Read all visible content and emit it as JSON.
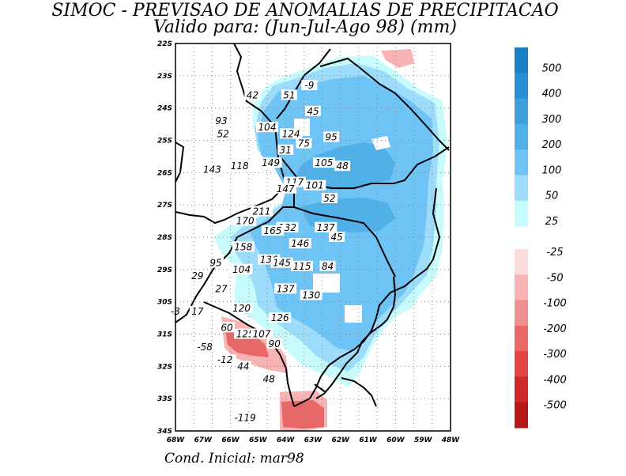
{
  "title_line1": "SIMOC - PREVISAO DE ANOMALIAS DE PRECIPITACAO",
  "title_line2": "Valido para: (Jun-Jul-Ago 98) (mm)",
  "footer": "Cond. Inicial: mar98",
  "map": {
    "lon_ticks": [
      "68W",
      "67W",
      "66W",
      "65W",
      "64W",
      "63W",
      "62W",
      "61W",
      "60W",
      "59W",
      "48W"
    ],
    "lat_ticks": [
      "22S",
      "23S",
      "24S",
      "25S",
      "26S",
      "27S",
      "28S",
      "29S",
      "30S",
      "31S",
      "32S",
      "33S",
      "34S"
    ],
    "labels": [
      {
        "v": "42",
        "lon": -63.8,
        "lat": -23.6
      },
      {
        "v": "51",
        "lon": -61.8,
        "lat": -23.6
      },
      {
        "v": "-9",
        "lon": -60.7,
        "lat": -23.3
      },
      {
        "v": "45",
        "lon": -60.5,
        "lat": -24.1
      },
      {
        "v": "93",
        "lon": -65.5,
        "lat": -24.4
      },
      {
        "v": "52",
        "lon": -65.4,
        "lat": -24.8
      },
      {
        "v": "104",
        "lon": -63.0,
        "lat": -24.6
      },
      {
        "v": "124",
        "lon": -61.7,
        "lat": -24.8
      },
      {
        "v": "75",
        "lon": -61.0,
        "lat": -25.1
      },
      {
        "v": "95",
        "lon": -59.5,
        "lat": -24.9
      },
      {
        "v": "31",
        "lon": -62.0,
        "lat": -25.3
      },
      {
        "v": "149",
        "lon": -62.8,
        "lat": -25.7
      },
      {
        "v": "105",
        "lon": -59.9,
        "lat": -25.7
      },
      {
        "v": "48",
        "lon": -58.9,
        "lat": -25.8
      },
      {
        "v": "143",
        "lon": -66.0,
        "lat": -25.9
      },
      {
        "v": "118",
        "lon": -64.5,
        "lat": -25.8
      },
      {
        "v": "117",
        "lon": -61.5,
        "lat": -26.3
      },
      {
        "v": "147",
        "lon": -62.0,
        "lat": -26.5
      },
      {
        "v": "101",
        "lon": -60.4,
        "lat": -26.4
      },
      {
        "v": "52",
        "lon": -59.6,
        "lat": -26.8
      },
      {
        "v": "211",
        "lon": -63.3,
        "lat": -27.2
      },
      {
        "v": "170",
        "lon": -64.2,
        "lat": -27.5
      },
      {
        "v": "132",
        "lon": -61.9,
        "lat": -27.7
      },
      {
        "v": "165",
        "lon": -62.7,
        "lat": -27.8
      },
      {
        "v": "137",
        "lon": -59.8,
        "lat": -27.7
      },
      {
        "v": "45",
        "lon": -59.2,
        "lat": -28.0
      },
      {
        "v": "146",
        "lon": -61.2,
        "lat": -28.2
      },
      {
        "v": "158",
        "lon": -64.3,
        "lat": -28.3
      },
      {
        "v": "95",
        "lon": -65.8,
        "lat": -28.8
      },
      {
        "v": "104",
        "lon": -64.4,
        "lat": -29.0
      },
      {
        "v": "136",
        "lon": -62.9,
        "lat": -28.7
      },
      {
        "v": "145",
        "lon": -62.2,
        "lat": -28.8
      },
      {
        "v": "115",
        "lon": -61.1,
        "lat": -28.9
      },
      {
        "v": "84",
        "lon": -59.7,
        "lat": -28.9
      },
      {
        "v": "29",
        "lon": -66.8,
        "lat": -29.2
      },
      {
        "v": "27",
        "lon": -65.5,
        "lat": -29.6
      },
      {
        "v": "137",
        "lon": -62.0,
        "lat": -29.6
      },
      {
        "v": "130",
        "lon": -60.6,
        "lat": -29.8
      },
      {
        "v": "120",
        "lon": -64.4,
        "lat": -30.2
      },
      {
        "v": "17",
        "lon": -66.8,
        "lat": -30.3
      },
      {
        "v": "-3",
        "lon": -68.0,
        "lat": -30.3
      },
      {
        "v": "126",
        "lon": -62.3,
        "lat": -30.5
      },
      {
        "v": "60",
        "lon": -65.2,
        "lat": -30.8
      },
      {
        "v": "125",
        "lon": -64.2,
        "lat": -31.0
      },
      {
        "v": "107",
        "lon": -63.3,
        "lat": -31.0
      },
      {
        "v": "90",
        "lon": -62.6,
        "lat": -31.3
      },
      {
        "v": "-58",
        "lon": -66.4,
        "lat": -31.4
      },
      {
        "v": "-12",
        "lon": -65.3,
        "lat": -31.8
      },
      {
        "v": "44",
        "lon": -64.3,
        "lat": -32.0
      },
      {
        "v": "48",
        "lon": -62.9,
        "lat": -32.4
      },
      {
        "v": "-119",
        "lon": -64.2,
        "lat": -33.6
      }
    ]
  },
  "colorbar": {
    "pos_labels": [
      "500",
      "400",
      "300",
      "200",
      "100",
      "50",
      "25"
    ],
    "neg_labels": [
      "-25",
      "-50",
      "-100",
      "-200",
      "-300",
      "-400",
      "-500"
    ],
    "pos_colors": [
      "#1a80c4",
      "#2890d0",
      "#3ca0dc",
      "#50b0e8",
      "#6ec4f4",
      "#9edcfc",
      "#c8fcfc"
    ],
    "neg_colors": [
      "#fcdcdc",
      "#f8b4b4",
      "#f09090",
      "#e86868",
      "#e04444",
      "#d02828",
      "#b41818"
    ]
  }
}
